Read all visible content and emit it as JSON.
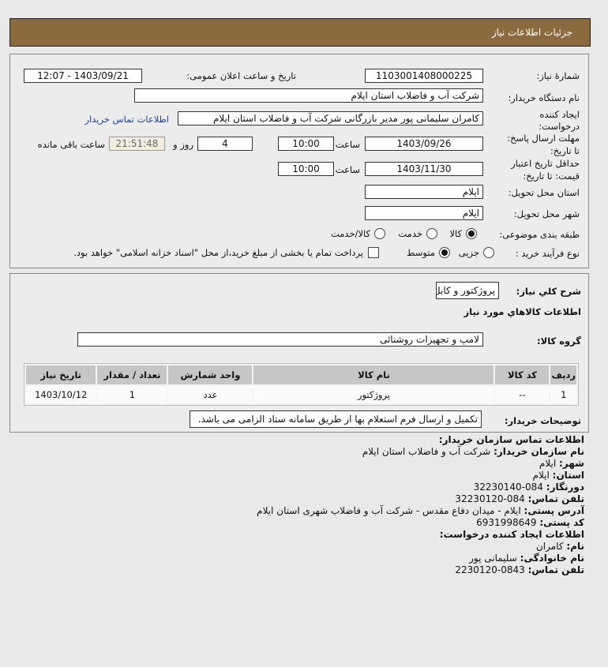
{
  "header": {
    "title": "جزئیات اطلاعات نیاز"
  },
  "form": {
    "need_number_label": "شمارهٔ نیاز:",
    "need_number": "1103001408000225",
    "announce_label": "تاریخ و ساعت اعلان عمومی:",
    "announce_value": "1403/09/21 - 12:07",
    "buyer_label": "نام دستگاه خریدار:",
    "buyer_value": "شرکت آب و فاضلاب استان ایلام",
    "creator_label_1": "ایجاد کننده",
    "creator_label_2": "درخواست:",
    "creator_value": "کامران سلیمانی پور مدیر بازرگانی شرکت آب و فاضلاب استان ایلام",
    "contact_link": "اطلاعات تماس خریدار",
    "deadline_label_1": "مهلت ارسال پاسخ:",
    "deadline_label_2": "تا تاریخ:",
    "deadline_date": "1403/09/26",
    "time_label": "ساعت",
    "deadline_time": "10:00",
    "days_value": "4",
    "days_label": "روز و",
    "remaining_value": "21:51:48",
    "remaining_label": "ساعت باقی مانده",
    "validity_label_1": "حداقل تاریخ اعتبار",
    "validity_label_2": "قیمت: تا تاریخ:",
    "validity_date": "1403/11/30",
    "validity_time": "10:00",
    "province_label": "استان محل تحویل:",
    "province_value": "ایلام",
    "city_label": "شهر محل تحویل:",
    "city_value": "ایلام",
    "category_label": "طبقه بندی موضوعی:",
    "category_options": [
      {
        "label": "کالا",
        "checked": true
      },
      {
        "label": "خدمت",
        "checked": false
      },
      {
        "label": "کالا/خدمت",
        "checked": false
      }
    ],
    "process_label": "نوع فرآیند خرید :",
    "process_options": [
      {
        "label": "جزیی",
        "checked": false
      },
      {
        "label": "متوسط",
        "checked": true
      }
    ],
    "treasury_checkbox": {
      "label": "پرداخت تمام یا بخشی از مبلغ خرید،از محل \"اسناد خزانه اسلامی\" خواهد بود.",
      "checked": false
    }
  },
  "details": {
    "summary_label": "شرح كلي نياز:",
    "summary_value": "پروژکتور و کابل",
    "items_heading": "اطلاعات كالاهاي مورد نياز",
    "group_label": "گروه كالا:",
    "group_value": "لامپ و تجهیزات روشنائی",
    "table": {
      "columns": [
        "ردیف",
        "کد کالا",
        "نام کالا",
        "واحد شمارش",
        "تعداد / مقدار",
        "تاریخ نیاز"
      ],
      "rows": [
        [
          "1",
          "--",
          "پروژکتور",
          "عدد",
          "1",
          "1403/10/12"
        ]
      ]
    },
    "notes_label": "توضیحات خریدار:",
    "notes_value": "تکمیل و ارسال فرم استعلام بها از طریق سامانه ستاد الزامی می باشد."
  },
  "contact": {
    "heading": "اطلاعات تماس سازمان خریدار:",
    "org_label": "نام سازمان خریدار:",
    "org_value": "شرکت آب و فاضلاب استان ایلام",
    "city_label": "شهر:",
    "city_value": "ایلام",
    "province_label": "استان:",
    "province_value": "ایلام",
    "fax_label": "دورنگار:",
    "fax_value": "084-32230140",
    "phone_label": "تلفن تماس:",
    "phone_value": "084-32230120",
    "address_label": "آدرس پستی:",
    "address_value": "ایلام - میدان دفاع مقدس - شرکت آب و فاضلاب شهری استان ایلام",
    "postal_label": "کد پستی:",
    "postal_value": "6931998649",
    "creator_heading": "اطلاعات ایجاد کننده درخواست:",
    "name_label": "نام:",
    "name_value": "کامران",
    "family_label": "نام خانوادگی:",
    "family_value": "سلیمانی پور",
    "creator_phone_label": "تلفن تماس:",
    "creator_phone_value": "0843-2230120"
  },
  "colors": {
    "header_bg": "#8b6a3e",
    "link": "#1a3fb0",
    "table_header": "#c6c6c6"
  }
}
